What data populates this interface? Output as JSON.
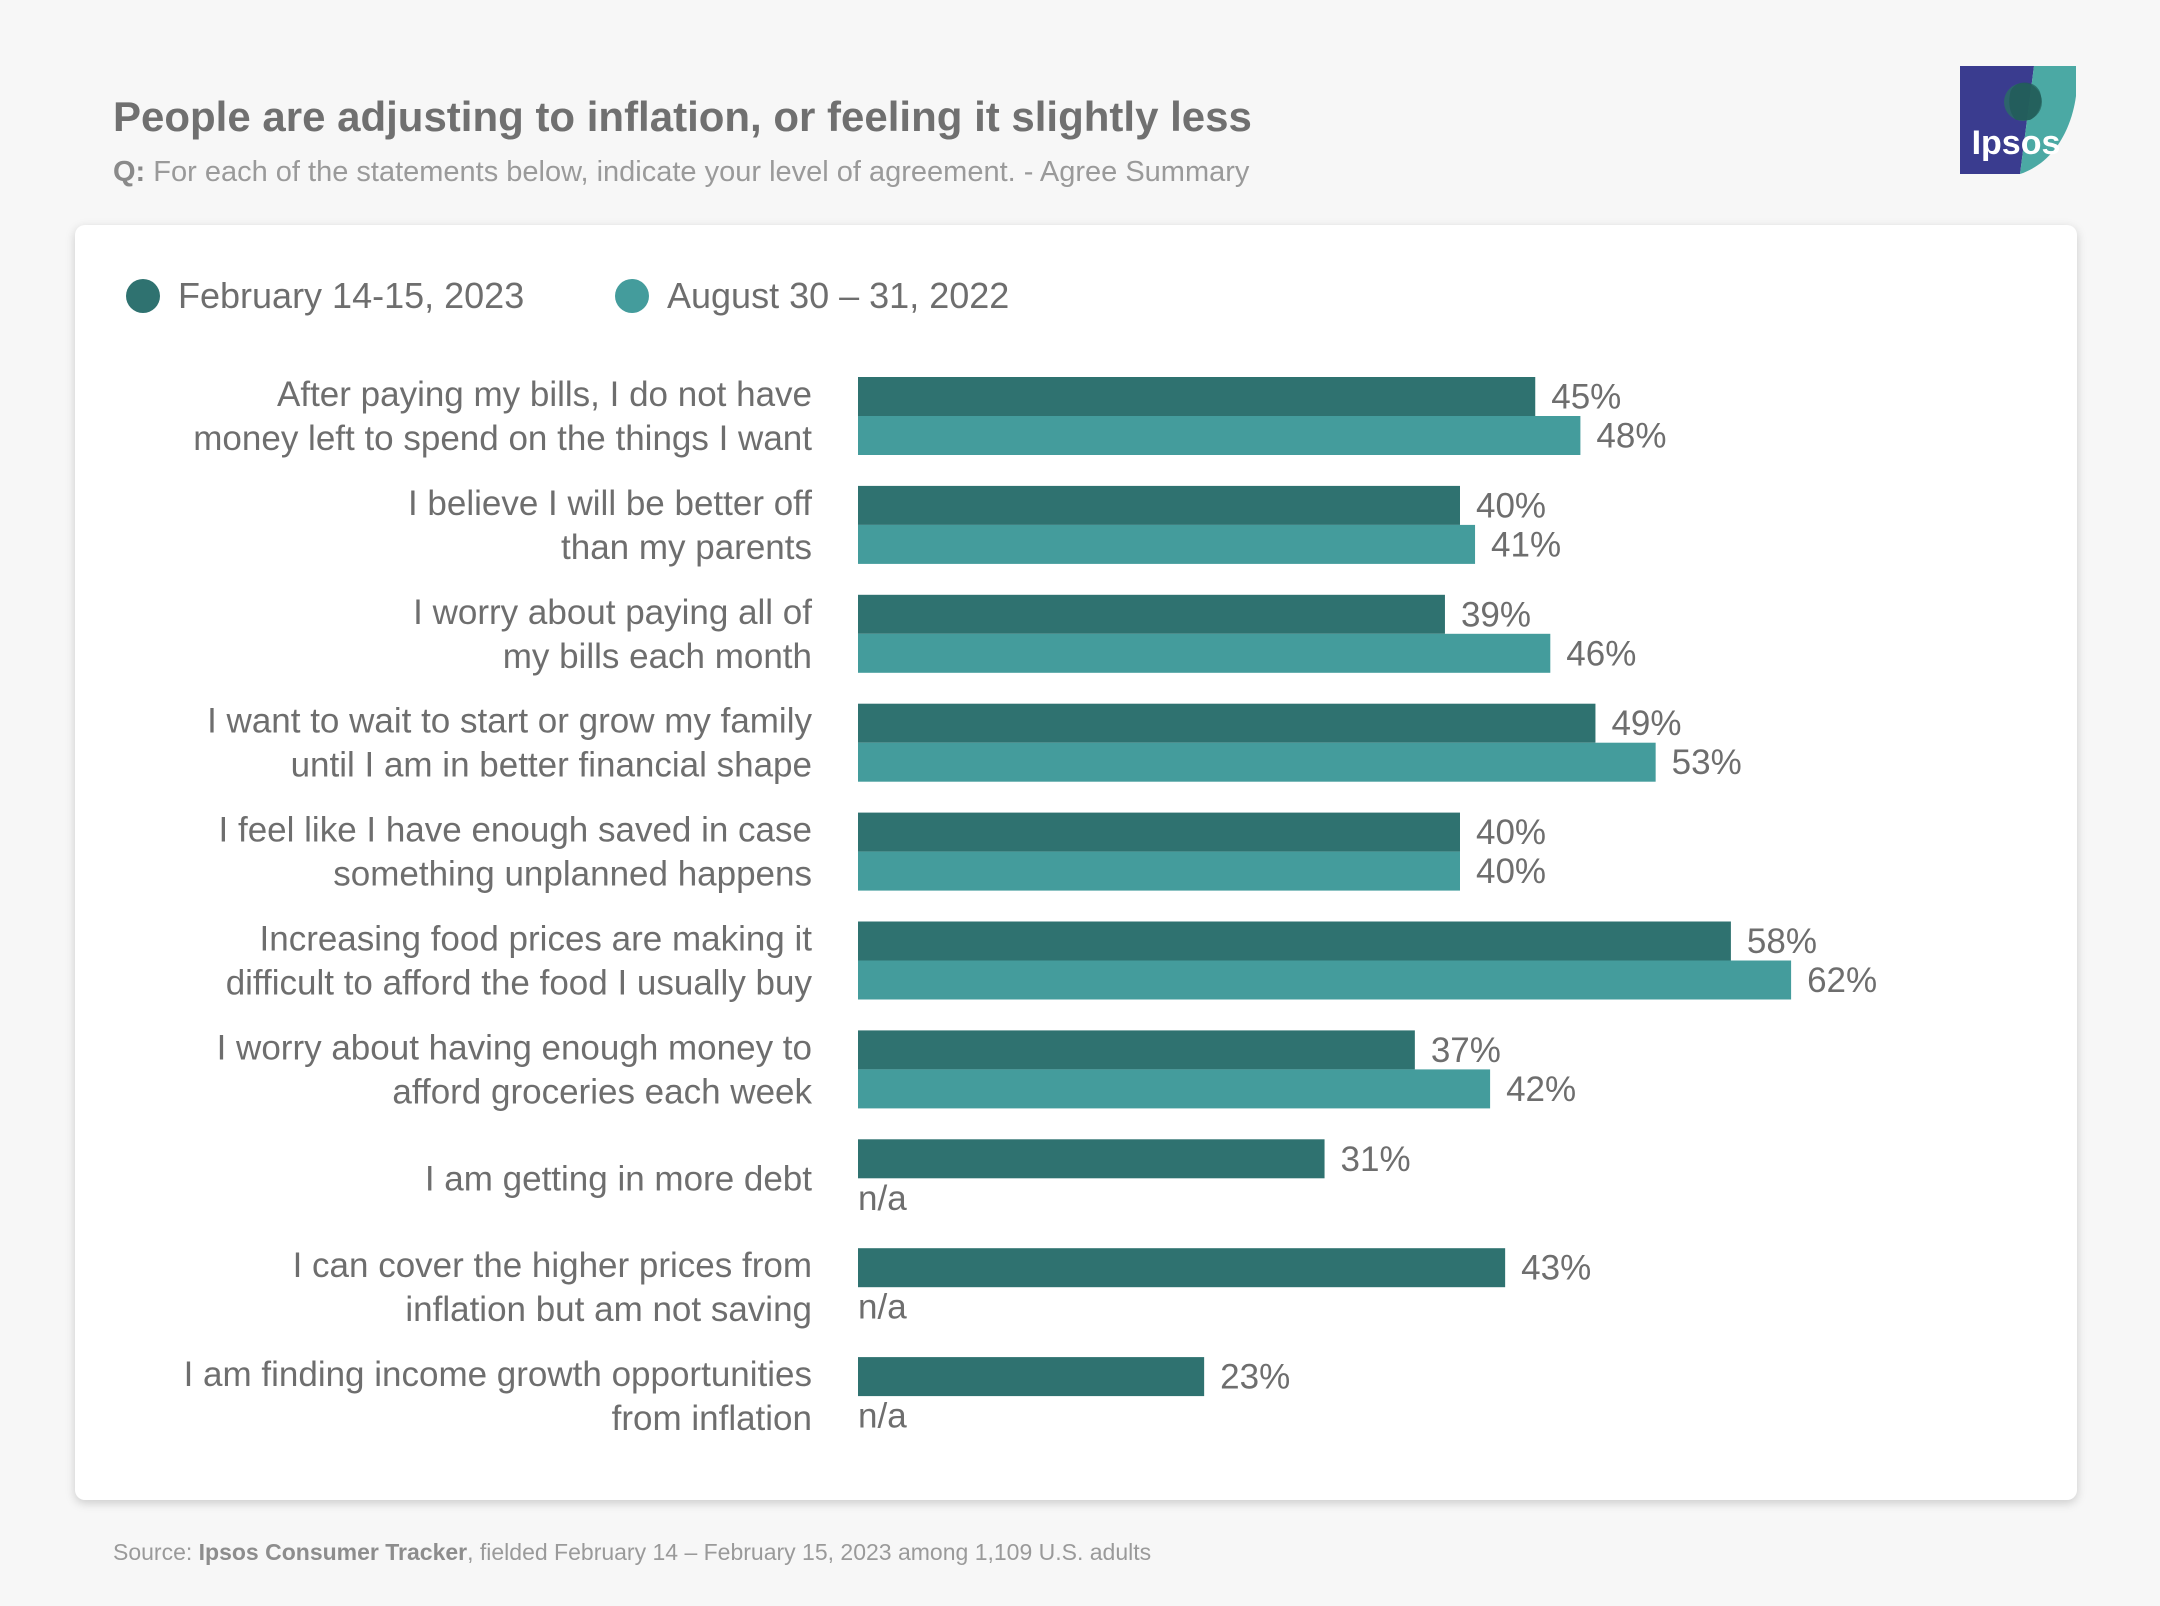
{
  "header": {
    "title": "People are adjusting to inflation, or feeling it slightly less",
    "question_prefix": "Q:",
    "question": "For each of the statements below, indicate your level of agreement. - Agree Summary",
    "logo_text": "Ipsos"
  },
  "colors": {
    "series_feb_2023": "#2f7270",
    "series_aug_2022": "#449c9c",
    "logo_blue": "#3a3c8f",
    "logo_teal": "#4ba9a4"
  },
  "chart_data": {
    "type": "bar",
    "orientation": "horizontal",
    "title": "People are adjusting to inflation, or feeling it slightly less",
    "legend_position": "top-left",
    "xlim": [
      0,
      100
    ],
    "unit": "%",
    "categories": [
      [
        "After paying my bills, I do not have",
        "money left to spend on the things I want"
      ],
      [
        "I believe I will be better off",
        "than my parents"
      ],
      [
        "I worry about paying all of",
        "my bills each month"
      ],
      [
        "I want to wait to start or grow my family",
        "until I am in better financial shape"
      ],
      [
        "I feel like I have enough saved in case",
        "something unplanned happens"
      ],
      [
        "Increasing food prices are making it",
        "difficult to afford the food I usually buy"
      ],
      [
        "I worry about having enough money to",
        "afford groceries each week"
      ],
      [
        "I am getting in more debt"
      ],
      [
        "I can cover the higher prices from",
        "inflation but am not saving"
      ],
      [
        "I am finding income growth opportunities",
        "from inflation"
      ]
    ],
    "series": [
      {
        "name": "February 14-15, 2023",
        "values": [
          45,
          40,
          39,
          49,
          40,
          58,
          37,
          31,
          43,
          23
        ]
      },
      {
        "name": "August 30 – 31, 2022",
        "values": [
          48,
          41,
          46,
          53,
          40,
          62,
          42,
          null,
          null,
          null
        ]
      }
    ],
    "missing_label": "n/a"
  },
  "source": {
    "prefix": "Source:",
    "name": "Ipsos Consumer Tracker",
    "rest": ", fielded February 14 – February 15, 2023 among 1,109 U.S. adults"
  }
}
